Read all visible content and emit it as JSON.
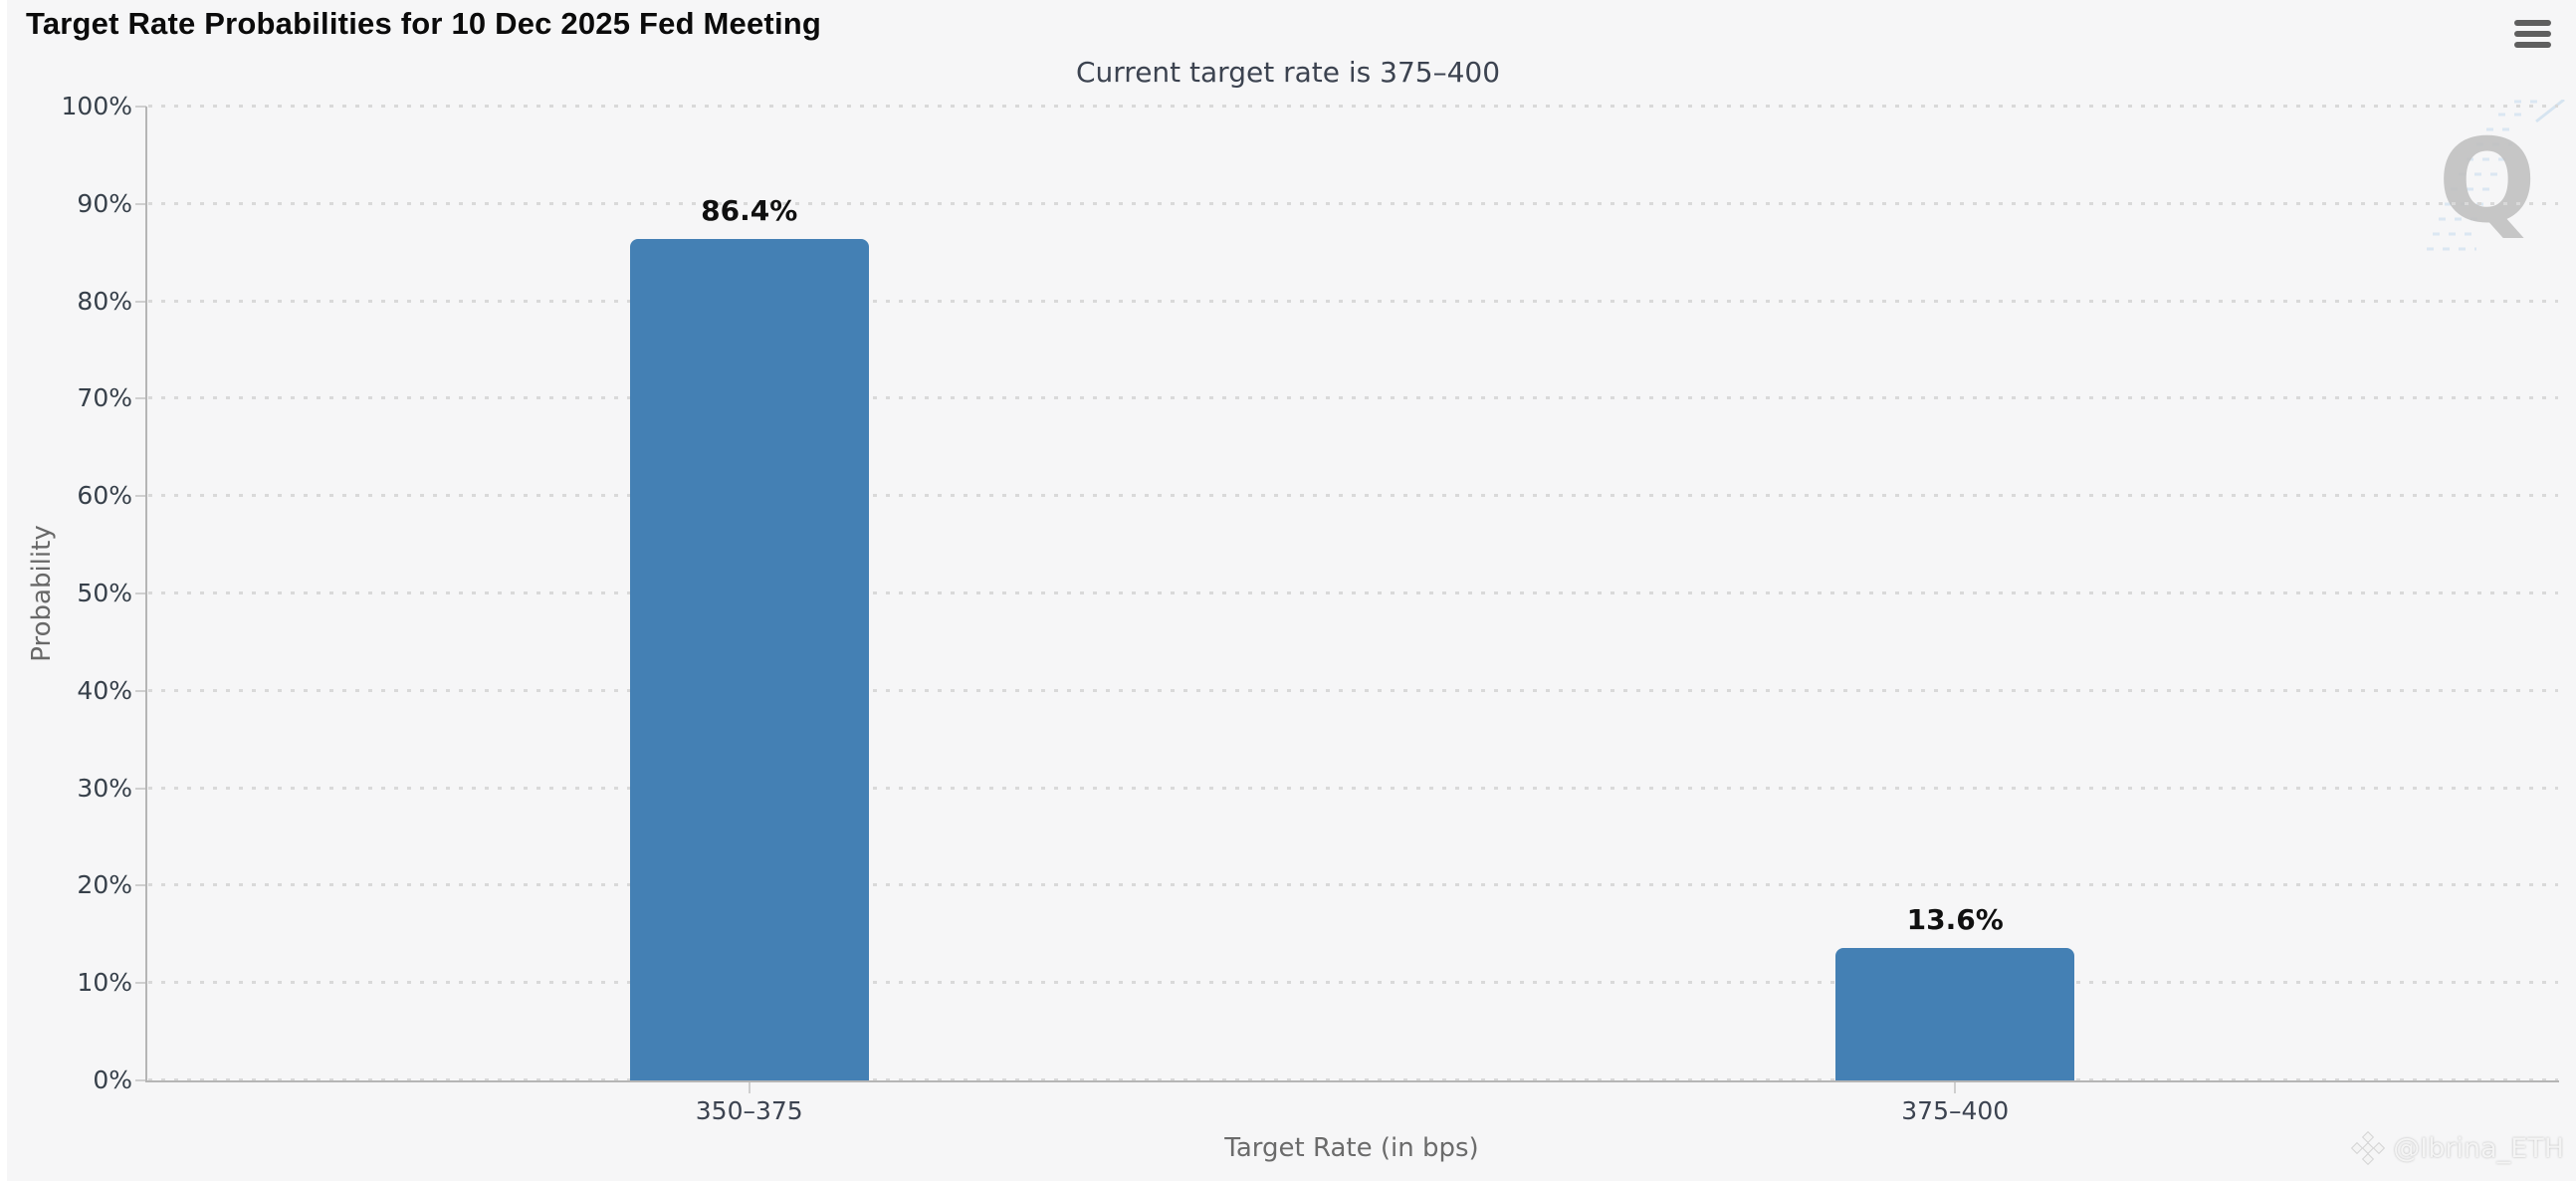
{
  "chart_data": {
    "type": "bar",
    "title": "Target Rate Probabilities for 10 Dec 2025 Fed Meeting",
    "subtitle": "Current target rate is 375–400",
    "categories": [
      "350–375",
      "375–400"
    ],
    "values": [
      86.4,
      13.6
    ],
    "data_labels": [
      "86.4%",
      "13.6%"
    ],
    "xlabel": "Target Rate (in bps)",
    "ylabel": "Probability",
    "ylim": [
      0,
      100
    ],
    "ytick_step": 10,
    "ytick_suffix": "%",
    "ytick_labels": [
      "0%",
      "10%",
      "20%",
      "30%",
      "40%",
      "50%",
      "60%",
      "70%",
      "80%",
      "90%",
      "100%"
    ],
    "grid": "dotted-horizontal",
    "legend": "none"
  },
  "colors": {
    "bar": "#4480b4",
    "background": "#f6f6f7",
    "grid_dot": "#d9d9d9",
    "axis_line": "#b5b5b5",
    "tick": "#cfcfcf",
    "watermark_gray": "#c2c2c2",
    "watermark_blue": "#d9e6f2"
  },
  "menu": {
    "tooltip": "Chart context menu"
  },
  "watermarks": {
    "q_logo": "Q",
    "credit": "@Ibrina_ETH"
  }
}
